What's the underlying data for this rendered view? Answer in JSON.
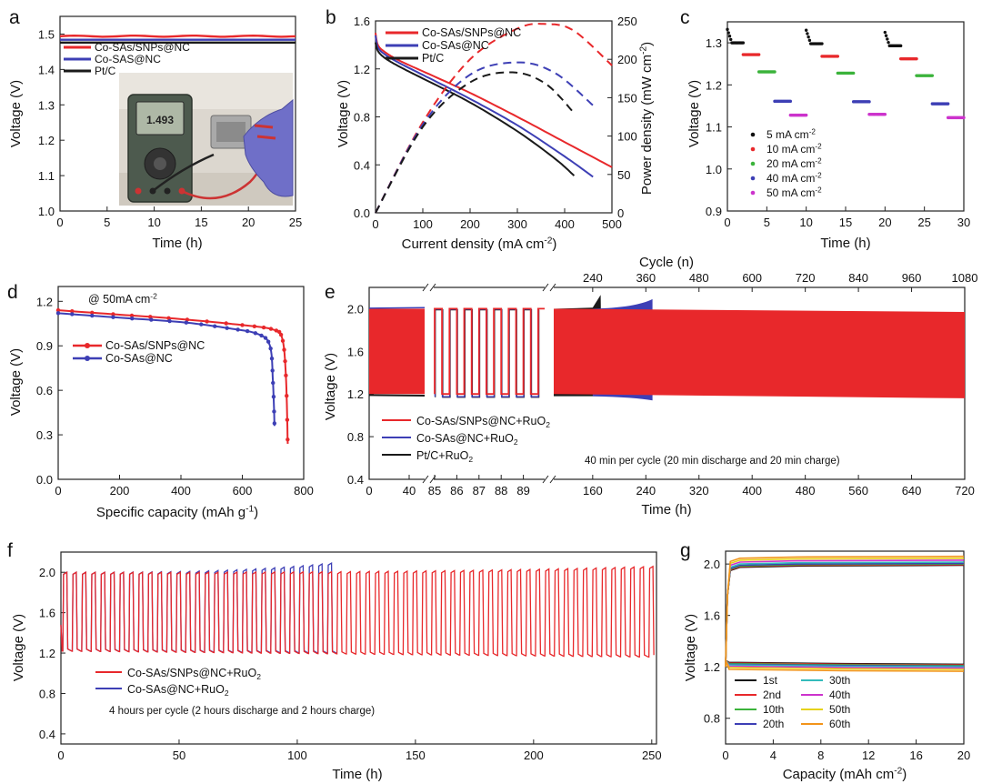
{
  "chart_data": [
    {
      "id": "a",
      "type": "line",
      "panel_label": "a",
      "xlabel": "Time (h)",
      "ylabel": "Voltage (V)",
      "xlim": [
        0,
        25
      ],
      "ylim": [
        1.0,
        1.55
      ],
      "xticks": [
        0,
        5,
        10,
        15,
        20,
        25
      ],
      "xtick_labels": [
        "0",
        "5",
        "10",
        "15",
        "20",
        "25"
      ],
      "yticks": [
        1.0,
        1.1,
        1.2,
        1.3,
        1.4,
        1.5
      ],
      "ytick_labels": [
        "1.0",
        "1.1",
        "1.2",
        "1.3",
        "1.4",
        "1.5"
      ],
      "series": [
        {
          "name": "Co-SAs/SNPs@NC",
          "color": "#e8282b",
          "x": [
            0,
            25
          ],
          "y": [
            1.494,
            1.494
          ]
        },
        {
          "name": "Co-SAS@NC",
          "color": "#3d3fb5",
          "x": [
            0,
            25
          ],
          "y": [
            1.484,
            1.484
          ]
        },
        {
          "name": "Pt/C",
          "color": "#1a1a1a",
          "x": [
            0,
            25
          ],
          "y": [
            1.476,
            1.476
          ]
        }
      ],
      "legend": [
        "Co-SAs/SNPs@NC",
        "Co-SAS@NC",
        "Pt/C"
      ],
      "annotations": [
        "photo of multimeter reading 1.493"
      ],
      "multimeter_reading": "1.493"
    },
    {
      "id": "b",
      "type": "line",
      "panel_label": "b",
      "xlabel": "Current density (mA cm⁻²)",
      "ylabel": "Voltage (V)",
      "y2label": "Power density (mW cm⁻²)",
      "xlim": [
        0,
        500
      ],
      "ylim": [
        0,
        1.6
      ],
      "y2lim": [
        0,
        250
      ],
      "xticks": [
        0,
        100,
        200,
        300,
        400,
        500
      ],
      "xtick_labels": [
        "0",
        "100",
        "200",
        "300",
        "400",
        "500"
      ],
      "yticks": [
        0,
        0.4,
        0.8,
        1.2,
        1.6
      ],
      "ytick_labels": [
        "0.0",
        "0.4",
        "0.8",
        "1.2",
        "1.6"
      ],
      "y2ticks": [
        0,
        50,
        100,
        150,
        200,
        250
      ],
      "y2tick_labels": [
        "0",
        "50",
        "100",
        "150",
        "200",
        "250"
      ],
      "series": [
        {
          "name": "Co-SAs/SNPs@NC",
          "color": "#e8282b",
          "style": "solid",
          "x": [
            0,
            5,
            20,
            50,
            100,
            200,
            300,
            400,
            500
          ],
          "y": [
            1.5,
            1.4,
            1.34,
            1.27,
            1.18,
            1.0,
            0.8,
            0.59,
            0.38
          ]
        },
        {
          "name": "Co-SAs@NC",
          "color": "#3d3fb5",
          "style": "solid",
          "x": [
            0,
            5,
            20,
            50,
            100,
            200,
            300,
            400,
            460
          ],
          "y": [
            1.48,
            1.38,
            1.32,
            1.25,
            1.15,
            0.95,
            0.73,
            0.47,
            0.3
          ]
        },
        {
          "name": "Pt/C",
          "color": "#1a1a1a",
          "style": "solid",
          "x": [
            0,
            5,
            20,
            50,
            100,
            200,
            300,
            380,
            420
          ],
          "y": [
            1.42,
            1.35,
            1.29,
            1.22,
            1.12,
            0.92,
            0.68,
            0.45,
            0.31
          ]
        },
        {
          "name": "Co-SAs/SNPs@NC power",
          "color": "#e8282b",
          "style": "dashed",
          "axis": "y2",
          "x": [
            0,
            100,
            200,
            300,
            360,
            420,
            500
          ],
          "y": [
            0,
            118,
            200,
            240,
            246,
            237,
            192
          ]
        },
        {
          "name": "Co-SAs@NC power",
          "color": "#3d3fb5",
          "style": "dashed",
          "axis": "y2",
          "x": [
            0,
            100,
            200,
            300,
            380,
            460
          ],
          "y": [
            0,
            115,
            180,
            196,
            182,
            140
          ]
        },
        {
          "name": "Pt/C power",
          "color": "#1a1a1a",
          "style": "dashed",
          "axis": "y2",
          "x": [
            0,
            100,
            200,
            290,
            360,
            420
          ],
          "y": [
            0,
            112,
            170,
            183,
            168,
            130
          ]
        }
      ],
      "legend": [
        "Co-SAs/SNPs@NC",
        "Co-SAs@NC",
        "Pt/C"
      ]
    },
    {
      "id": "c",
      "type": "scatter",
      "panel_label": "c",
      "xlabel": "Time (h)",
      "ylabel": "Voltage (V)",
      "xlim": [
        0,
        30
      ],
      "ylim": [
        0.9,
        1.35
      ],
      "xticks": [
        0,
        5,
        10,
        15,
        20,
        25,
        30
      ],
      "xtick_labels": [
        "0",
        "5",
        "10",
        "15",
        "20",
        "25",
        "30"
      ],
      "yticks": [
        0.9,
        1.0,
        1.1,
        1.2,
        1.3
      ],
      "ytick_labels": [
        "0.9",
        "1.0",
        "1.1",
        "1.2",
        "1.3"
      ],
      "series": [
        {
          "name": "5 mA cm⁻²",
          "color": "#111111",
          "segments": [
            [
              0,
              2,
              1.3
            ],
            [
              10,
              12,
              1.298
            ],
            [
              20,
              22,
              1.293
            ]
          ]
        },
        {
          "name": "10 mA cm⁻²",
          "color": "#e8282b",
          "segments": [
            [
              2,
              4,
              1.272
            ],
            [
              12,
              14,
              1.268
            ],
            [
              22,
              24,
              1.262
            ]
          ]
        },
        {
          "name": "20 mA cm⁻²",
          "color": "#3bb33b",
          "segments": [
            [
              4,
              6,
              1.231
            ],
            [
              14,
              16,
              1.228
            ],
            [
              24,
              26,
              1.222
            ]
          ]
        },
        {
          "name": "40 mA cm⁻²",
          "color": "#3d3fb5",
          "segments": [
            [
              6,
              8,
              1.161
            ],
            [
              16,
              18,
              1.16
            ],
            [
              26,
              28,
              1.155
            ]
          ]
        },
        {
          "name": "50 mA cm⁻²",
          "color": "#cc33cc",
          "segments": [
            [
              8,
              10,
              1.128
            ],
            [
              18,
              20,
              1.13
            ],
            [
              28,
              30,
              1.122
            ]
          ]
        }
      ],
      "legend": [
        "5 mA cm⁻²",
        "10 mA cm⁻²",
        "20 mA cm⁻²",
        "40 mA cm⁻²",
        "50 mA cm⁻²"
      ]
    },
    {
      "id": "d",
      "type": "line",
      "panel_label": "d",
      "xlabel": "Specific capacity (mAh g⁻¹)",
      "ylabel": "Voltage (V)",
      "xlim": [
        0,
        800
      ],
      "ylim": [
        0,
        1.3
      ],
      "xticks": [
        0,
        200,
        400,
        600,
        800
      ],
      "xtick_labels": [
        "0",
        "200",
        "400",
        "600",
        "800"
      ],
      "yticks": [
        0,
        0.3,
        0.6,
        0.9,
        1.2
      ],
      "ytick_labels": [
        "0.0",
        "0.3",
        "0.6",
        "0.9",
        "1.2"
      ],
      "annotation": "@ 50mA cm⁻²",
      "series": [
        {
          "name": "Co-SAs/SNPs@NC",
          "color": "#e8282b",
          "x": [
            0,
            200,
            400,
            600,
            700,
            730,
            742,
            748
          ],
          "y": [
            1.14,
            1.11,
            1.08,
            1.04,
            1.01,
            0.95,
            0.7,
            0.24
          ]
        },
        {
          "name": "Co-SAs@NC",
          "color": "#3d3fb5",
          "x": [
            0,
            200,
            400,
            550,
            650,
            690,
            700,
            705
          ],
          "y": [
            1.12,
            1.09,
            1.06,
            1.02,
            0.98,
            0.9,
            0.65,
            0.36
          ]
        }
      ],
      "legend": [
        "Co-SAs/SNPs@NC",
        "Co-SAs@NC"
      ]
    },
    {
      "id": "e",
      "type": "line",
      "panel_label": "e",
      "xlabel": "Time (h)",
      "ylabel": "Voltage (V)",
      "x2label": "Cycle (n)",
      "ylim": [
        0.4,
        2.2
      ],
      "yticks": [
        0.4,
        0.8,
        1.2,
        1.6,
        2.0
      ],
      "ytick_labels": [
        "0.4",
        "0.8",
        "1.2",
        "1.6",
        "2.0"
      ],
      "xtick_labels_segment1": [
        "0",
        "40"
      ],
      "xtick_labels_segment2": [
        "85",
        "86",
        "87",
        "88",
        "89"
      ],
      "xtick_labels_segment3": [
        "160",
        "240",
        "320",
        "400",
        "480",
        "560",
        "640",
        "720"
      ],
      "x2tick_labels": [
        "240",
        "360",
        "480",
        "600",
        "720",
        "840",
        "960",
        "1080"
      ],
      "annotation": "40 min per cycle (20 min discharge and 20 min charge)",
      "series": [
        {
          "name": "Co-SAs/SNPs@NC+RuO₂",
          "color": "#e8282b",
          "charge_V": 2.0,
          "discharge_V": 1.2
        },
        {
          "name": "Co-SAs@NC+RuO₂",
          "color": "#3d3fb5",
          "charge_V_end": 2.08,
          "discharge_V_end": 1.15
        },
        {
          "name": "Pt/C+RuO₂",
          "color": "#1a1a1a",
          "charge_V_end": 2.13,
          "discharge_V_end": 1.16
        }
      ],
      "legend": [
        "Co-SAs/SNPs@NC+RuO₂",
        "Co-SAs@NC+RuO₂",
        "Pt/C+RuO₂"
      ]
    },
    {
      "id": "f",
      "type": "line",
      "panel_label": "f",
      "xlabel": "Time (h)",
      "ylabel": "Voltage (V)",
      "xlim": [
        0,
        252
      ],
      "ylim": [
        0.3,
        2.2
      ],
      "xticks": [
        0,
        50,
        100,
        150,
        200,
        250
      ],
      "xtick_labels": [
        "0",
        "50",
        "100",
        "150",
        "200",
        "250"
      ],
      "yticks": [
        0.4,
        0.8,
        1.2,
        1.6,
        2.0
      ],
      "ytick_labels": [
        "0.4",
        "0.8",
        "1.2",
        "1.6",
        "2.0"
      ],
      "annotation": "4 hours per cycle (2 hours discharge and 2 hours charge)",
      "series": [
        {
          "name": "Co-SAs/SNPs@NC+RuO₂",
          "color": "#e8282b",
          "t_end": 252,
          "charge_V_start": 2.0,
          "charge_V_end": 2.06,
          "discharge_V_start": 1.22,
          "discharge_V_end": 1.16
        },
        {
          "name": "Co-SAs@NC+RuO₂",
          "color": "#3d3fb5",
          "t_end": 116,
          "charge_V_start": 2.0,
          "charge_V_end": 2.1,
          "discharge_V_start": 1.22,
          "discharge_V_end": 1.2
        }
      ],
      "legend": [
        "Co-SAs/SNPs@NC+RuO₂",
        "Co-SAs@NC+RuO₂"
      ]
    },
    {
      "id": "g",
      "type": "line",
      "panel_label": "g",
      "xlabel": "Capacity (mAh cm⁻²)",
      "ylabel": "Voltage (V)",
      "xlim": [
        0,
        20
      ],
      "ylim": [
        0.6,
        2.1
      ],
      "xticks": [
        0,
        4,
        8,
        12,
        16,
        20
      ],
      "xtick_labels": [
        "0",
        "4",
        "8",
        "12",
        "16",
        "20"
      ],
      "yticks": [
        0.8,
        1.2,
        1.6,
        2.0
      ],
      "ytick_labels": [
        "0.8",
        "1.2",
        "1.6",
        "2.0"
      ],
      "series": [
        {
          "name": "1st",
          "color": "#111111",
          "charge_V": 1.99,
          "discharge_V": 1.225
        },
        {
          "name": "2nd",
          "color": "#e8282b",
          "charge_V": 1.995,
          "discharge_V": 1.22
        },
        {
          "name": "10th",
          "color": "#3bb33b",
          "charge_V": 2.0,
          "discharge_V": 1.215
        },
        {
          "name": "20th",
          "color": "#3d3fb5",
          "charge_V": 2.005,
          "discharge_V": 1.21
        },
        {
          "name": "30th",
          "color": "#33bbbb",
          "charge_V": 2.015,
          "discharge_V": 1.205
        },
        {
          "name": "40th",
          "color": "#cc33cc",
          "charge_V": 2.03,
          "discharge_V": 1.195
        },
        {
          "name": "50th",
          "color": "#e6d21a",
          "charge_V": 2.045,
          "discharge_V": 1.185
        },
        {
          "name": "60th",
          "color": "#f2941a",
          "charge_V": 2.06,
          "discharge_V": 1.17
        }
      ],
      "legend": [
        "1st",
        "2nd",
        "10th",
        "20th",
        "30th",
        "40th",
        "50th",
        "60th"
      ]
    }
  ]
}
